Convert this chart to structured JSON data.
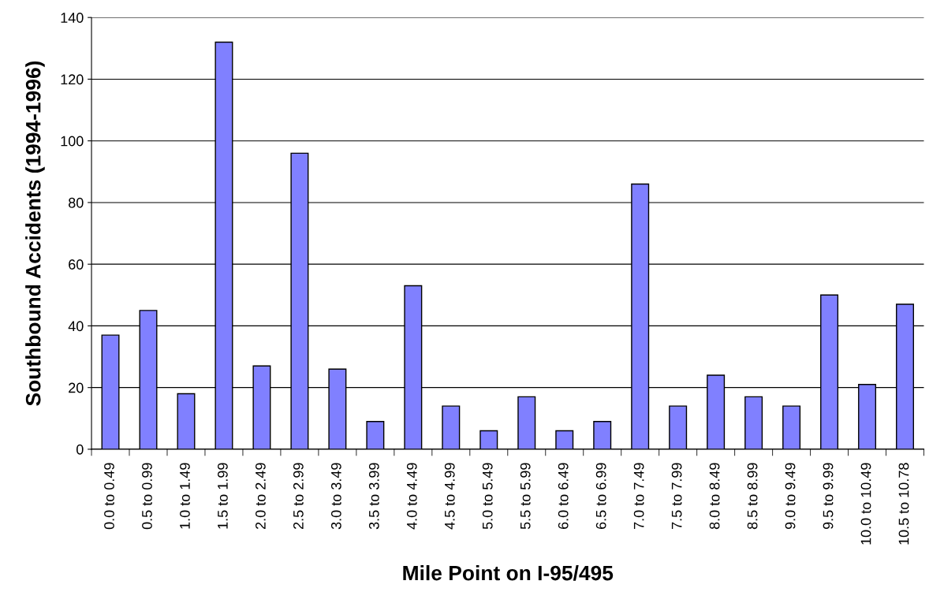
{
  "chart_data": {
    "type": "bar",
    "xlabel": "Mile Point on I-95/495",
    "ylabel": "Southbound Accidents (1994-1996)",
    "categories": [
      "0.0 to 0.49",
      "0.5 to 0.99",
      "1.0 to 1.49",
      "1.5 to 1.99",
      "2.0 to 2.49",
      "2.5 to 2.99",
      "3.0 to 3.49",
      "3.5 to 3.99",
      "4.0 to 4.49",
      "4.5 to 4.99",
      "5.0 to 5.49",
      "5.5 to 5.99",
      "6.0 to 6.49",
      "6.5 to 6.99",
      "7.0 to 7.49",
      "7.5 to 7.99",
      "8.0 to 8.49",
      "8.5 to 8.99",
      "9.0 to 9.49",
      "9.5 to 9.99",
      "10.0 to 10.49",
      "10.5 to 10.78"
    ],
    "values": [
      37,
      45,
      18,
      132,
      27,
      96,
      26,
      9,
      53,
      14,
      6,
      17,
      6,
      9,
      86,
      14,
      24,
      17,
      14,
      50,
      21,
      47
    ],
    "color": "#8080ff",
    "ylim": [
      0,
      140
    ],
    "yticks": [
      0,
      20,
      40,
      60,
      80,
      100,
      120,
      140
    ],
    "grid": "y"
  }
}
